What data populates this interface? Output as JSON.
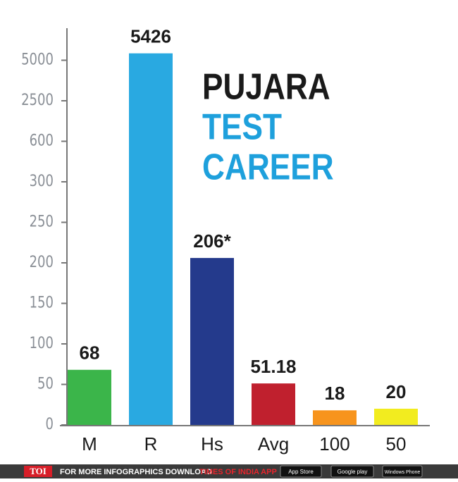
{
  "chart_data": {
    "type": "bar",
    "title_lines": [
      "PUJARA",
      "TEST",
      "CAREER"
    ],
    "title_colors": [
      "#1a1a1a",
      "#1ea0dc",
      "#1ea0dc"
    ],
    "categories": [
      "M",
      "R",
      "Hs",
      "Avg",
      "100",
      "50"
    ],
    "values": [
      68,
      5426,
      206,
      51.18,
      18,
      20
    ],
    "value_labels": [
      "68",
      "5426",
      "206*",
      "51.18",
      "18",
      "20"
    ],
    "colors": [
      "#3bb54a",
      "#29a9e1",
      "#243a8c",
      "#c0202e",
      "#f7941d",
      "#f2ec1f"
    ],
    "ylim": [
      0,
      7000
    ],
    "yticks": [
      0,
      50,
      100,
      150,
      200,
      250,
      300,
      600,
      2500,
      5000
    ],
    "scale": "piecewise"
  },
  "footer": {
    "brand": "TOI",
    "text": "FOR MORE INFOGRAPHICS DOWNLOAD",
    "app": "TIMES OF INDIA APP",
    "badges": [
      "App Store",
      "Google play",
      "Windows Phone"
    ]
  }
}
